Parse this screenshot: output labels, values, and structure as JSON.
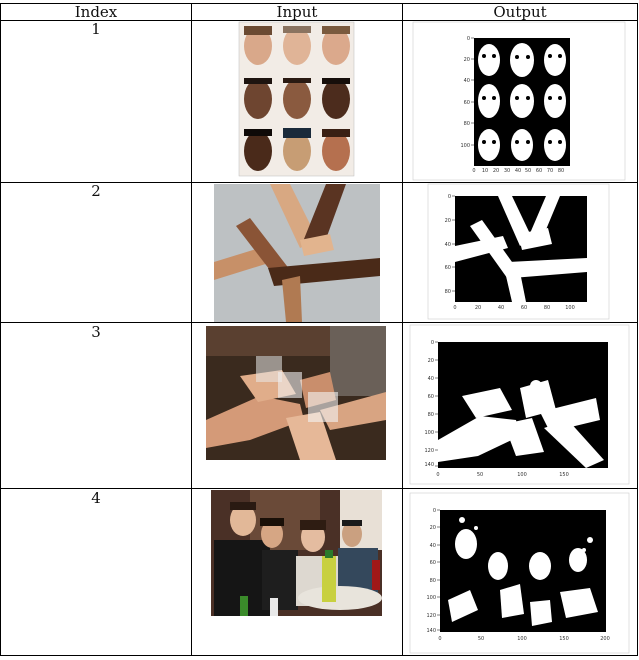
{
  "table": {
    "headers": [
      "Index",
      "Input",
      "Output"
    ],
    "rows": [
      {
        "index": "1",
        "input_desc": "3x3 grid of face photos",
        "output_axes": {
          "y_ticks": [
            "0",
            "20",
            "40",
            "60",
            "80",
            "100"
          ],
          "x_ticks": [
            "0",
            "10",
            "20",
            "30",
            "40",
            "50",
            "60",
            "70",
            "80"
          ]
        }
      },
      {
        "index": "2",
        "input_desc": "four interlocked hands",
        "output_axes": {
          "y_ticks": [
            "0",
            "20",
            "40",
            "60",
            "80"
          ],
          "x_ticks": [
            "0",
            "20",
            "40",
            "60",
            "80",
            "100"
          ]
        }
      },
      {
        "index": "3",
        "input_desc": "hands toasting with cups",
        "output_axes": {
          "y_ticks": [
            "0",
            "20",
            "40",
            "60",
            "80",
            "100",
            "120",
            "140"
          ],
          "x_ticks": [
            "0",
            "50",
            "100",
            "150"
          ]
        }
      },
      {
        "index": "4",
        "input_desc": "group of people at a party",
        "output_axes": {
          "y_ticks": [
            "0",
            "20",
            "40",
            "60",
            "80",
            "100",
            "120",
            "140"
          ],
          "x_ticks": [
            "0",
            "50",
            "100",
            "150",
            "200"
          ]
        }
      }
    ]
  }
}
